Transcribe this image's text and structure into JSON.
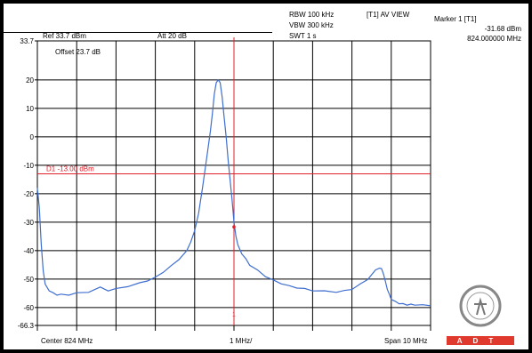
{
  "header": {
    "rbw": "RBW 100 kHz",
    "vbw": "VBW 300 kHz",
    "swt": "SWT 1 s",
    "trace_mode": "[T1] AV VIEW",
    "marker_title": "Marker 1 [T1]",
    "marker_level": "-31.68 dBm",
    "marker_freq": "824.000000 MHz",
    "ref_level": "Ref 33.7 dBm",
    "attenuation": "Att  20 dB",
    "offset": "Offset 23.7 dB"
  },
  "footer": {
    "center": "Center 824 MHz",
    "div": "1 MHz/",
    "span": "Span 10 MHz"
  },
  "logo": {
    "text": "ADT"
  },
  "colors": {
    "trace": "#3f6ecf",
    "marker": "#e0202a",
    "grid": "#000000",
    "logo_band": "#e03a2f"
  },
  "chart_data": {
    "type": "line",
    "x_unit": "MHz",
    "x_range": [
      819,
      829
    ],
    "ylim": [
      -66.3,
      33.7
    ],
    "yticks": [
      "33.7",
      "20",
      "10",
      "0",
      "-10",
      "-20",
      "-30",
      "-40",
      "-50",
      "-60",
      "-66.3"
    ],
    "ytick_values": [
      33.7,
      20,
      10,
      0,
      -10,
      -20,
      -30,
      -40,
      -50,
      -60,
      -66.3
    ],
    "grid": true,
    "limit_line": {
      "label": "D1 -13.00 dBm",
      "value": -13
    },
    "marker": {
      "label": "1",
      "x": 824,
      "y": -31.68
    },
    "series": [
      {
        "x": [
          819.0,
          819.05,
          819.1,
          819.15,
          819.2,
          819.3,
          819.4,
          819.5,
          819.6,
          819.8,
          820.0,
          820.3,
          820.6,
          820.8,
          821.0,
          821.3,
          821.6,
          821.8,
          822.0,
          822.2,
          822.4,
          822.6,
          822.8,
          822.9,
          823.0,
          823.1,
          823.2,
          823.3,
          823.4,
          823.45,
          823.5,
          823.55,
          823.6,
          823.65,
          823.7,
          823.75,
          823.8,
          823.85,
          823.9,
          823.95,
          824.0,
          824.05,
          824.1,
          824.2,
          824.3,
          824.4,
          824.6,
          824.8,
          825.0,
          825.2,
          825.4,
          825.6,
          825.8,
          826.0,
          826.3,
          826.6,
          826.8,
          827.0,
          827.2,
          827.4,
          827.6,
          827.7,
          827.75,
          827.8,
          827.85,
          827.9,
          827.95,
          828.0,
          828.1,
          828.2,
          828.3,
          828.4,
          828.5,
          828.6,
          828.8,
          829.0
        ],
        "values": [
          -18,
          -25,
          -38,
          -47,
          -52,
          -54,
          -55,
          -55.5,
          -55.5,
          -55.5,
          -55,
          -54.5,
          -53,
          -54,
          -53.5,
          -52.5,
          -51.5,
          -50.5,
          -49.5,
          -47.5,
          -45.5,
          -43,
          -40,
          -37,
          -33,
          -27,
          -18,
          -8,
          2,
          8,
          15,
          19,
          20,
          19,
          14,
          7,
          0,
          -8,
          -15,
          -22,
          -30,
          -35,
          -38,
          -41,
          -43,
          -45,
          -47,
          -49,
          -50.5,
          -51.5,
          -52.5,
          -53,
          -53.5,
          -54,
          -54.3,
          -54.5,
          -54.2,
          -53.5,
          -52,
          -50,
          -47,
          -46,
          -46.5,
          -48,
          -51,
          -53.5,
          -55.5,
          -57,
          -58,
          -58.5,
          -58.8,
          -59,
          -59,
          -59,
          -59.2,
          -59.2
        ]
      }
    ]
  }
}
